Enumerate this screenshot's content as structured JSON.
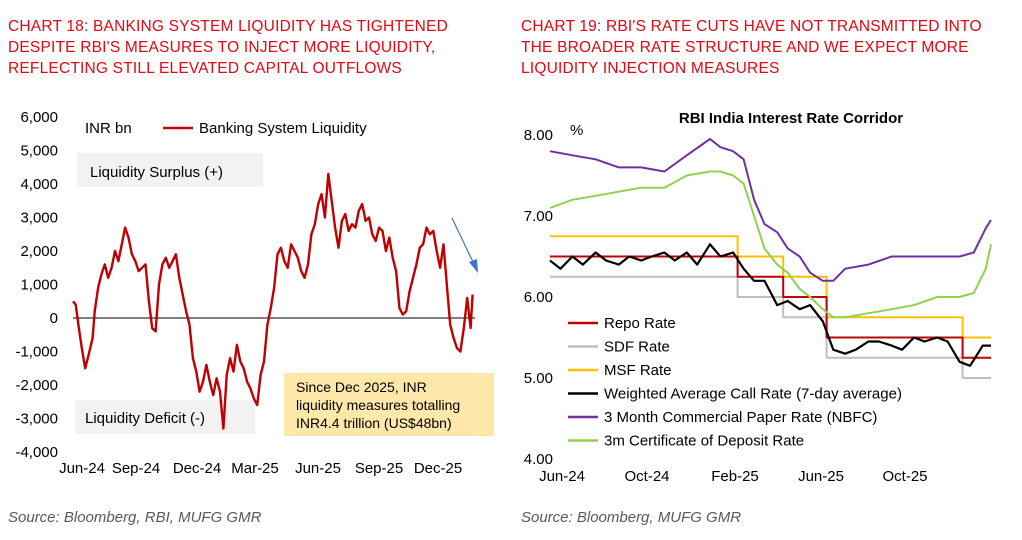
{
  "colors": {
    "title_red": "#e30613",
    "liquidity_line": "#c00000",
    "repo": "#c00000",
    "sdf": "#bfbfbf",
    "msf": "#ffc000",
    "wacr": "#000000",
    "cp": "#7030a0",
    "cd": "#92d050",
    "box_grey": "#f2f2f2",
    "box_yellow": "#fde7a9",
    "arrow": "#4472c4"
  },
  "left": {
    "title": "CHART 18: BANKING SYSTEM LIQUIDITY HAS TIGHTENED DESPITE RBI'S MEASURES TO INJECT MORE LIQUIDITY, REFLECTING STILL ELEVATED CAPITAL OUTFLOWS",
    "source": "Source: Bloomberg, RBI, MUFG GMR",
    "surplus_label": "Liquidity Surplus (+)",
    "deficit_label": "Liquidity Deficit (-)",
    "annotation": [
      "Since Dec 2025, INR",
      "liquidity measures totalling",
      "INR4.4 trillion (US$48bn)"
    ]
  },
  "right": {
    "title": "CHART 19: RBI'S RATE CUTS HAVE NOT TRANSMITTED INTO THE BROADER RATE STRUCTURE AND WE EXPECT MORE LIQUIDITY INJECTION MEASURES",
    "source": "Source: Bloomberg, MUFG GMR"
  },
  "chart_data": [
    {
      "type": "line",
      "title": "",
      "ylabel": "INR bn",
      "ylim": [
        -4000,
        6000
      ],
      "yticks": [
        "6,000",
        "5,000",
        "4,000",
        "3,000",
        "2,000",
        "1,000",
        "0",
        "-1,000",
        "-2,000",
        "-3,000",
        "-4,000"
      ],
      "xticks": [
        "Jun-24",
        "Sep-24",
        "Dec-24",
        "Mar-25",
        "Jun-25",
        "Sep-25",
        "Dec-25"
      ],
      "legend": "top-left",
      "series": [
        {
          "name": "Banking System Liquidity",
          "x": [
            "2024-06-01",
            "2024-06-05",
            "2024-06-09",
            "2024-06-14",
            "2024-06-19",
            "2024-06-24",
            "2024-06-30",
            "2024-07-03",
            "2024-07-08",
            "2024-07-13",
            "2024-07-18",
            "2024-07-23",
            "2024-07-28",
            "2024-08-02",
            "2024-08-07",
            "2024-08-12",
            "2024-08-17",
            "2024-08-22",
            "2024-08-27",
            "2024-09-01",
            "2024-09-06",
            "2024-09-11",
            "2024-09-16",
            "2024-09-21",
            "2024-09-26",
            "2024-10-01",
            "2024-10-06",
            "2024-10-11",
            "2024-10-16",
            "2024-10-21",
            "2024-10-26",
            "2024-10-31",
            "2024-11-05",
            "2024-11-10",
            "2024-11-15",
            "2024-11-20",
            "2024-11-25",
            "2024-11-30",
            "2024-12-05",
            "2024-12-10",
            "2024-12-15",
            "2024-12-20",
            "2024-12-25",
            "2024-12-30",
            "2025-01-04",
            "2025-01-09",
            "2025-01-14",
            "2025-01-19",
            "2025-01-24",
            "2025-01-29",
            "2025-02-03",
            "2025-02-08",
            "2025-02-13",
            "2025-02-18",
            "2025-02-23",
            "2025-02-28",
            "2025-03-05",
            "2025-03-10",
            "2025-03-15",
            "2025-03-20",
            "2025-03-25",
            "2025-03-30",
            "2025-04-04",
            "2025-04-09",
            "2025-04-14",
            "2025-04-19",
            "2025-04-24",
            "2025-04-29",
            "2025-05-04",
            "2025-05-09",
            "2025-05-14",
            "2025-05-19",
            "2025-05-24",
            "2025-05-29",
            "2025-06-03",
            "2025-06-08",
            "2025-06-13",
            "2025-06-18",
            "2025-06-23",
            "2025-06-28",
            "2025-07-03",
            "2025-07-08",
            "2025-07-13",
            "2025-07-18",
            "2025-07-23",
            "2025-07-28",
            "2025-08-02",
            "2025-08-07",
            "2025-08-12",
            "2025-08-17",
            "2025-08-22",
            "2025-08-27",
            "2025-09-01",
            "2025-09-06",
            "2025-09-11",
            "2025-09-16",
            "2025-09-21",
            "2025-09-26",
            "2025-10-01",
            "2025-10-06",
            "2025-10-11",
            "2025-10-16",
            "2025-10-21",
            "2025-10-26",
            "2025-10-31",
            "2025-11-05",
            "2025-11-10",
            "2025-11-15",
            "2025-11-20",
            "2025-11-25",
            "2025-11-30",
            "2025-12-05",
            "2025-12-10",
            "2025-12-15",
            "2025-12-20",
            "2025-12-25",
            "2025-12-30",
            "2026-01-04",
            "2026-01-09",
            "2026-01-12"
          ],
          "values": [
            500,
            400,
            -200,
            -900,
            -1500,
            -1100,
            -600,
            200,
            900,
            1300,
            1600,
            1200,
            1500,
            2000,
            1700,
            2200,
            2700,
            2400,
            1900,
            1700,
            1400,
            1500,
            1600,
            500,
            -300,
            -400,
            1000,
            1600,
            1800,
            1500,
            1700,
            1900,
            1200,
            700,
            200,
            -200,
            -1200,
            -1600,
            -2200,
            -1900,
            -1400,
            -1900,
            -2300,
            -1800,
            -2200,
            -3300,
            -1700,
            -1200,
            -1600,
            -800,
            -1300,
            -1500,
            -1900,
            -2100,
            -2400,
            -2600,
            -1700,
            -1300,
            -200,
            300,
            900,
            1900,
            2100,
            1700,
            1500,
            2200,
            2000,
            1800,
            1400,
            1200,
            1600,
            2500,
            2800,
            3400,
            3700,
            3000,
            4300,
            3500,
            2700,
            2100,
            2900,
            3100,
            2600,
            2800,
            2700,
            3200,
            3400,
            2900,
            3000,
            2500,
            2300,
            2700,
            2600,
            2000,
            2400,
            1800,
            1400,
            300,
            100,
            200,
            800,
            1200,
            1600,
            2100,
            2200,
            2700,
            2500,
            2600,
            2000,
            1500,
            2200,
            1000,
            -200,
            -600,
            -900,
            -1000,
            -300,
            600,
            -300,
            700
          ]
        }
      ]
    },
    {
      "type": "line",
      "title": "RBI India Interest Rate Corridor",
      "ylabel": "%",
      "ylim": [
        4.0,
        8.0
      ],
      "yticks": [
        "8.00",
        "7.00",
        "6.00",
        "5.00",
        "4.00"
      ],
      "xticks": [
        "Jun-24",
        "Oct-24",
        "Feb-25",
        "Jun-25",
        "Oct-25"
      ],
      "legend": "bottom-left",
      "series": [
        {
          "name": "Repo Rate",
          "x": [
            "2024-06-01",
            "2025-02-07",
            "2025-02-07",
            "2025-04-09",
            "2025-04-09",
            "2025-06-06",
            "2025-06-06",
            "2025-12-05",
            "2025-12-05",
            "2026-01-12"
          ],
          "values": [
            6.5,
            6.5,
            6.25,
            6.25,
            6.0,
            6.0,
            5.5,
            5.5,
            5.25,
            5.25
          ]
        },
        {
          "name": "SDF Rate",
          "x": [
            "2024-06-01",
            "2025-02-07",
            "2025-02-07",
            "2025-04-09",
            "2025-04-09",
            "2025-06-06",
            "2025-06-06",
            "2025-12-05",
            "2025-12-05",
            "2026-01-12"
          ],
          "values": [
            6.25,
            6.25,
            6.0,
            6.0,
            5.75,
            5.75,
            5.25,
            5.25,
            5.0,
            5.0
          ]
        },
        {
          "name": "MSF Rate",
          "x": [
            "2024-06-01",
            "2025-02-07",
            "2025-02-07",
            "2025-04-09",
            "2025-04-09",
            "2025-06-06",
            "2025-06-06",
            "2025-12-05",
            "2025-12-05",
            "2026-01-12"
          ],
          "values": [
            6.75,
            6.75,
            6.5,
            6.5,
            6.25,
            6.25,
            5.75,
            5.75,
            5.5,
            5.5
          ]
        },
        {
          "name": "Weighted Average Call Rate (7-day average)",
          "x": [
            "2024-06-01",
            "2024-06-15",
            "2024-07-01",
            "2024-07-15",
            "2024-08-01",
            "2024-08-15",
            "2024-09-01",
            "2024-09-15",
            "2024-10-01",
            "2024-10-15",
            "2024-11-01",
            "2024-11-15",
            "2024-12-01",
            "2024-12-15",
            "2025-01-01",
            "2025-01-15",
            "2025-02-01",
            "2025-02-15",
            "2025-03-01",
            "2025-03-15",
            "2025-04-01",
            "2025-04-15",
            "2025-05-01",
            "2025-05-15",
            "2025-06-01",
            "2025-06-15",
            "2025-07-01",
            "2025-07-15",
            "2025-08-01",
            "2025-08-15",
            "2025-09-01",
            "2025-09-15",
            "2025-10-01",
            "2025-10-15",
            "2025-11-01",
            "2025-11-15",
            "2025-12-01",
            "2025-12-15",
            "2026-01-01",
            "2026-01-12"
          ],
          "values": [
            6.45,
            6.35,
            6.5,
            6.4,
            6.55,
            6.45,
            6.4,
            6.5,
            6.45,
            6.5,
            6.55,
            6.45,
            6.55,
            6.4,
            6.65,
            6.5,
            6.55,
            6.35,
            6.2,
            6.2,
            5.9,
            5.95,
            5.85,
            5.9,
            5.7,
            5.35,
            5.3,
            5.35,
            5.45,
            5.45,
            5.4,
            5.35,
            5.5,
            5.45,
            5.5,
            5.45,
            5.2,
            5.15,
            5.4,
            5.4
          ]
        },
        {
          "name": "3 Month Commercial Paper Rate (NBFC)",
          "x": [
            "2024-06-01",
            "2024-07-01",
            "2024-08-01",
            "2024-09-01",
            "2024-10-01",
            "2024-11-01",
            "2024-12-01",
            "2025-01-01",
            "2025-01-15",
            "2025-02-01",
            "2025-02-15",
            "2025-03-01",
            "2025-03-15",
            "2025-04-01",
            "2025-04-15",
            "2025-05-01",
            "2025-05-15",
            "2025-06-01",
            "2025-06-15",
            "2025-07-01",
            "2025-08-01",
            "2025-09-01",
            "2025-10-01",
            "2025-11-01",
            "2025-12-01",
            "2025-12-20",
            "2026-01-05",
            "2026-01-12"
          ],
          "values": [
            7.8,
            7.75,
            7.7,
            7.6,
            7.6,
            7.55,
            7.75,
            7.95,
            7.85,
            7.8,
            7.7,
            7.2,
            6.9,
            6.8,
            6.6,
            6.5,
            6.3,
            6.2,
            6.2,
            6.35,
            6.4,
            6.5,
            6.5,
            6.5,
            6.5,
            6.55,
            6.85,
            6.95
          ]
        },
        {
          "name": "3m Certificate of Deposit Rate",
          "x": [
            "2024-06-01",
            "2024-07-01",
            "2024-08-01",
            "2024-09-01",
            "2024-10-01",
            "2024-11-01",
            "2024-12-01",
            "2025-01-01",
            "2025-01-15",
            "2025-02-01",
            "2025-02-15",
            "2025-03-01",
            "2025-03-15",
            "2025-04-01",
            "2025-04-15",
            "2025-05-01",
            "2025-05-15",
            "2025-06-01",
            "2025-06-15",
            "2025-07-01",
            "2025-08-01",
            "2025-09-01",
            "2025-10-01",
            "2025-11-01",
            "2025-12-01",
            "2025-12-20",
            "2026-01-05",
            "2026-01-12"
          ],
          "values": [
            7.1,
            7.2,
            7.25,
            7.3,
            7.35,
            7.35,
            7.5,
            7.55,
            7.55,
            7.5,
            7.4,
            7.0,
            6.6,
            6.4,
            6.3,
            6.1,
            6.0,
            5.85,
            5.75,
            5.75,
            5.8,
            5.85,
            5.9,
            6.0,
            6.0,
            6.05,
            6.35,
            6.65
          ]
        }
      ]
    }
  ]
}
